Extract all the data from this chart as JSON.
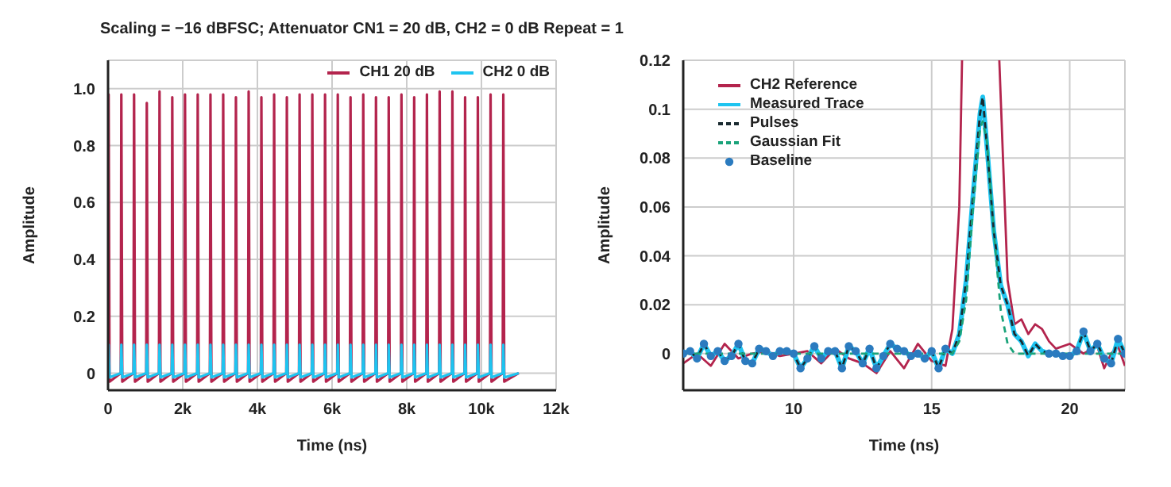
{
  "chart_data": [
    {
      "type": "line",
      "title": "Scaling = −16 dBFSC; Attenuator CN1 = 20 dB, CH2 = 0 dB Repeat = 1",
      "xlabel": "Time (ns)",
      "ylabel": "Amplitude",
      "xlim": [
        0,
        12000
      ],
      "xticks": [
        0,
        {
          "value": 2000,
          "label": "2k"
        },
        {
          "value": 4000,
          "label": "4k"
        },
        {
          "value": 6000,
          "label": "6k"
        },
        {
          "value": 8000,
          "label": "8k"
        },
        {
          "value": 10000,
          "label": "10k"
        },
        {
          "value": 12000,
          "label": "12k"
        }
      ],
      "ylim": [
        -0.06,
        1.1
      ],
      "yticks": [
        0,
        0.2,
        0.4,
        0.6,
        0.8,
        {
          "value": 1,
          "label": "1.0"
        }
      ],
      "grid": true,
      "legend": "top right",
      "x": [
        0,
        15,
        40,
        341,
        356,
        381,
        682,
        697,
        722,
        1023,
        1038,
        1063,
        1364,
        1379,
        1404,
        1705,
        1720,
        1745,
        2046,
        2061,
        2086,
        2387,
        2402,
        2427,
        2728,
        2743,
        2768,
        3069,
        3084,
        3109,
        3410,
        3425,
        3450,
        3751,
        3766,
        3791,
        4092,
        4107,
        4132,
        4433,
        4448,
        4473,
        4774,
        4789,
        4814,
        5115,
        5130,
        5155,
        5456,
        5471,
        5496,
        5797,
        5812,
        5837,
        6138,
        6153,
        6178,
        6479,
        6494,
        6519,
        6820,
        6835,
        6860,
        7161,
        7176,
        7201,
        7502,
        7517,
        7542,
        7843,
        7858,
        7883,
        8184,
        8199,
        8224,
        8525,
        8540,
        8565,
        8866,
        8881,
        8906,
        9207,
        9222,
        9247,
        9548,
        9563,
        9588,
        9889,
        9904,
        9929,
        10230,
        10245,
        10270,
        10571,
        10586,
        10611,
        11000
      ],
      "series": [
        {
          "name": "CH1 20 dB",
          "color": "#b3244d",
          "values": [
            0,
            0.98,
            -0.03,
            0,
            0.98,
            -0.03,
            0,
            0.98,
            -0.03,
            0,
            0.95,
            -0.03,
            0,
            0.99,
            -0.03,
            0,
            0.97,
            -0.03,
            0,
            0.98,
            -0.03,
            0,
            0.98,
            -0.03,
            0,
            0.98,
            -0.03,
            0,
            0.98,
            -0.03,
            0,
            0.97,
            -0.03,
            0,
            0.99,
            -0.03,
            0,
            0.97,
            -0.03,
            0,
            0.98,
            -0.03,
            0,
            0.97,
            -0.03,
            0,
            0.98,
            -0.03,
            0,
            0.98,
            -0.03,
            0,
            0.98,
            -0.03,
            0,
            0.98,
            -0.03,
            0,
            0.97,
            -0.03,
            0,
            0.98,
            -0.03,
            0,
            0.97,
            -0.03,
            0,
            0.97,
            -0.03,
            0,
            0.98,
            -0.03,
            0,
            0.97,
            -0.03,
            0,
            0.98,
            -0.03,
            0,
            0.99,
            -0.03,
            0,
            0.99,
            -0.03,
            0,
            0.97,
            -0.03,
            0,
            0.97,
            -0.03,
            0,
            0.98,
            -0.03,
            0,
            0.98,
            -0.03,
            0
          ]
        },
        {
          "name": "CH2 0 dB",
          "color": "#1ec4f0",
          "values": [
            0,
            0.1,
            -0.015,
            0,
            0.1,
            -0.015,
            0,
            0.1,
            -0.015,
            0,
            0.1,
            -0.015,
            0,
            0.1,
            -0.015,
            0,
            0.1,
            -0.015,
            0,
            0.1,
            -0.015,
            0,
            0.1,
            -0.015,
            0,
            0.1,
            -0.015,
            0,
            0.1,
            -0.015,
            0,
            0.1,
            -0.015,
            0,
            0.1,
            -0.015,
            0,
            0.1,
            -0.015,
            0,
            0.1,
            -0.015,
            0,
            0.1,
            -0.015,
            0,
            0.1,
            -0.015,
            0,
            0.1,
            -0.015,
            0,
            0.1,
            -0.015,
            0,
            0.1,
            -0.015,
            0,
            0.1,
            -0.015,
            0,
            0.1,
            -0.015,
            0,
            0.1,
            -0.015,
            0,
            0.1,
            -0.015,
            0,
            0.1,
            -0.015,
            0,
            0.1,
            -0.015,
            0,
            0.1,
            -0.015,
            0,
            0.1,
            -0.015,
            0,
            0.1,
            -0.015,
            0,
            0.1,
            -0.015,
            0,
            0.1,
            -0.015,
            0,
            0.1,
            -0.015,
            0,
            0.1,
            -0.015,
            0
          ]
        }
      ]
    },
    {
      "type": "line",
      "xlabel": "Time (ns)",
      "ylabel": "Amplitude",
      "xlim": [
        6,
        22
      ],
      "xticks": [
        10,
        15,
        20
      ],
      "ylim": [
        -0.015,
        0.12
      ],
      "yticks": [
        0,
        0.02,
        0.04,
        0.06,
        0.08,
        0.1,
        0.12
      ],
      "grid": true,
      "legend": "top left",
      "series": [
        {
          "name": "CH2 Reference",
          "color": "#b3244d",
          "x": [
            6,
            6.5,
            7,
            7.5,
            8,
            8.5,
            9,
            9.5,
            10,
            10.5,
            11,
            11.5,
            12,
            12.5,
            13,
            13.5,
            14,
            14.5,
            15,
            15.5,
            15.75,
            16,
            16.1,
            16.8,
            17.45,
            17.75,
            18,
            18.25,
            18.5,
            18.75,
            19,
            19.25,
            19.5,
            20,
            20.5,
            21,
            21.25,
            21.5,
            21.75,
            22
          ],
          "values": [
            -0.004,
            0,
            -0.005,
            0.004,
            -0.002,
            0,
            0.001,
            -0.001,
            0,
            0.001,
            -0.004,
            0.002,
            -0.002,
            -0.004,
            -0.008,
            0.001,
            -0.006,
            0.004,
            -0.003,
            -0.005,
            0.01,
            0.06,
            0.12,
            null,
            0.12,
            0.03,
            0.012,
            0.014,
            0.008,
            0.012,
            0.01,
            0.005,
            0.002,
            0.004,
            0,
            0.003,
            -0.006,
            0,
            0.003,
            -0.005
          ]
        },
        {
          "name": "Measured Trace",
          "color": "#1ec4f0",
          "x": [
            6,
            6.25,
            6.5,
            6.75,
            7,
            7.25,
            7.5,
            7.75,
            8,
            8.25,
            8.5,
            8.75,
            9,
            9.25,
            9.5,
            9.75,
            10,
            10.25,
            10.5,
            10.75,
            11,
            11.25,
            11.5,
            11.75,
            12,
            12.25,
            12.5,
            12.75,
            13,
            13.25,
            13.5,
            13.75,
            14,
            14.25,
            14.5,
            14.75,
            15,
            15.25,
            15.5,
            15.75,
            16,
            16.25,
            16.5,
            16.75,
            16.85,
            17,
            17.25,
            17.5,
            17.75,
            18,
            18.25,
            18.5,
            18.75,
            19,
            19.25,
            19.5,
            19.75,
            20,
            20.25,
            20.5,
            20.75,
            21,
            21.25,
            21.5,
            21.75,
            22
          ],
          "values": [
            0,
            0.001,
            -0.002,
            0.004,
            -0.001,
            0.001,
            -0.003,
            -0.001,
            0.004,
            -0.003,
            -0.004,
            0.002,
            0.001,
            -0.001,
            0.001,
            0.001,
            0,
            -0.006,
            -0.002,
            0.003,
            -0.002,
            0.001,
            0.001,
            -0.006,
            0.003,
            0.001,
            -0.004,
            0.002,
            -0.006,
            -0.001,
            0.004,
            0.002,
            0.001,
            -0.001,
            0,
            -0.002,
            0.001,
            -0.006,
            0.002,
            0,
            0.008,
            0.03,
            0.065,
            0.098,
            0.105,
            0.085,
            0.05,
            0.028,
            0.02,
            0.008,
            0.005,
            -0.001,
            0.004,
            0.001,
            0,
            0,
            -0.001,
            -0.001,
            0.001,
            0.009,
            0.001,
            0.004,
            -0.002,
            -0.004,
            0.006,
            0
          ]
        },
        {
          "name": "Pulses",
          "color": "#1a2a30",
          "line_style": "dashed",
          "x": [
            6,
            6.25,
            6.5,
            6.75,
            7,
            7.25,
            7.5,
            7.75,
            8,
            8.25,
            8.5,
            8.75,
            9,
            9.25,
            9.5,
            9.75,
            10,
            10.25,
            10.5,
            10.75,
            11,
            11.25,
            11.5,
            11.75,
            12,
            12.25,
            12.5,
            12.75,
            13,
            13.25,
            13.5,
            13.75,
            14,
            14.25,
            14.5,
            14.75,
            15,
            15.25,
            15.5,
            15.75,
            16,
            16.25,
            16.5,
            16.75,
            16.85,
            17,
            17.25,
            17.5,
            17.75,
            18,
            18.25,
            18.5,
            18.75,
            19,
            19.25,
            19.5,
            19.75,
            20,
            20.25,
            20.5,
            20.75,
            21,
            21.25,
            21.5,
            21.75,
            22
          ],
          "values": [
            0,
            0.001,
            -0.002,
            0.004,
            -0.001,
            0.001,
            -0.003,
            -0.001,
            0.004,
            -0.003,
            -0.004,
            0.002,
            0.001,
            -0.001,
            0.001,
            0.001,
            0,
            -0.006,
            -0.002,
            0.003,
            -0.002,
            0.001,
            0.001,
            -0.006,
            0.003,
            0.001,
            -0.004,
            0.002,
            -0.006,
            -0.001,
            0.004,
            0.002,
            0.001,
            -0.001,
            0,
            -0.002,
            0.001,
            -0.006,
            0.002,
            0,
            0.008,
            0.03,
            0.065,
            0.098,
            0.105,
            0.085,
            0.05,
            0.028,
            0.02,
            0.008,
            0.005,
            -0.001,
            0.004,
            0.001,
            0,
            0,
            -0.001,
            -0.001,
            0.001,
            0.009,
            0.001,
            0.004,
            -0.002,
            -0.004,
            0.006,
            0
          ]
        },
        {
          "name": "Gaussian Fit",
          "color": "#1aa37a",
          "line_style": "dashed",
          "x": [
            6,
            15.75,
            16,
            16.25,
            16.5,
            16.75,
            16.85,
            17,
            17.25,
            17.5,
            17.75,
            18,
            18.25,
            22
          ],
          "values": [
            0,
            0,
            0.005,
            0.022,
            0.06,
            0.092,
            0.095,
            0.087,
            0.05,
            0.018,
            0.004,
            0,
            0,
            0
          ]
        },
        {
          "name": "Baseline",
          "type": "scatter",
          "marker": "circle",
          "color": "#2b7bbf",
          "x": [
            6,
            6.25,
            6.5,
            6.75,
            7,
            7.25,
            7.5,
            7.75,
            8,
            8.25,
            8.5,
            8.75,
            9,
            9.25,
            9.5,
            9.75,
            10,
            10.25,
            10.5,
            10.75,
            11,
            11.25,
            11.5,
            11.75,
            12,
            12.25,
            12.5,
            12.75,
            13,
            13.25,
            13.5,
            13.75,
            14,
            14.25,
            14.5,
            14.75,
            15,
            15.25,
            15.5,
            19.25,
            19.5,
            19.75,
            20,
            20.25,
            20.5,
            20.75,
            21,
            21.25,
            21.5,
            21.75,
            22
          ],
          "values": [
            0,
            0.001,
            -0.002,
            0.004,
            -0.001,
            0.001,
            -0.003,
            -0.001,
            0.004,
            -0.003,
            -0.004,
            0.002,
            0.001,
            -0.001,
            0.001,
            0.001,
            0,
            -0.006,
            -0.002,
            0.003,
            -0.002,
            0.001,
            0.001,
            -0.006,
            0.003,
            0.001,
            -0.004,
            0.002,
            -0.006,
            -0.001,
            0.004,
            0.002,
            0.001,
            -0.001,
            0,
            -0.002,
            0.001,
            -0.006,
            0.002,
            0,
            0,
            -0.001,
            -0.001,
            0.001,
            0.009,
            0.001,
            0.004,
            -0.002,
            -0.004,
            0.006,
            0
          ]
        }
      ]
    }
  ]
}
